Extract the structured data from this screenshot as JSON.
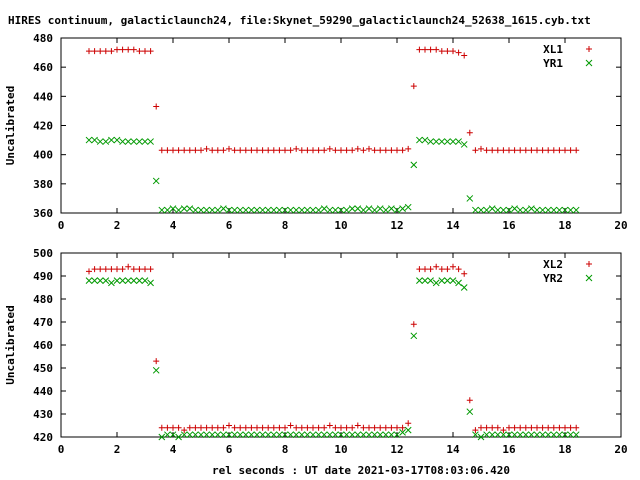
{
  "chart_data": [
    {
      "type": "scatter",
      "title": "HIRES continuum, galacticlaunch24, file:Skynet_59290_galacticlaunch24_52638_1615.cyb.txt",
      "ylabel": "Uncalibrated",
      "xlabel": "",
      "xlim": [
        0,
        20
      ],
      "ylim": [
        360,
        480
      ],
      "xticks": [
        "0",
        "2",
        "4",
        "6",
        "8",
        "10",
        "12",
        "14",
        "16",
        "18",
        "20"
      ],
      "yticks": [
        "360",
        "380",
        "400",
        "420",
        "440",
        "460",
        "480"
      ],
      "grid": false,
      "legend_position": "top-right",
      "series": [
        {
          "name": "XL1",
          "marker": "plus",
          "color": "#cc0000",
          "x": [
            1.0,
            1.2,
            1.4,
            1.6,
            1.8,
            2.0,
            2.2,
            2.4,
            2.6,
            2.8,
            3.0,
            3.2,
            3.4,
            3.6,
            3.8,
            4.0,
            4.2,
            4.4,
            4.6,
            4.8,
            5.0,
            5.2,
            5.4,
            5.6,
            5.8,
            6.0,
            6.2,
            6.4,
            6.6,
            6.8,
            7.0,
            7.2,
            7.4,
            7.6,
            7.8,
            8.0,
            8.2,
            8.4,
            8.6,
            8.8,
            9.0,
            9.2,
            9.4,
            9.6,
            9.8,
            10.0,
            10.2,
            10.4,
            10.6,
            10.8,
            11.0,
            11.2,
            11.4,
            11.6,
            11.8,
            12.0,
            12.2,
            12.4,
            12.6,
            12.8,
            13.0,
            13.2,
            13.4,
            13.6,
            13.8,
            14.0,
            14.2,
            14.4,
            14.6,
            14.8,
            15.0,
            15.2,
            15.4,
            15.6,
            15.8,
            16.0,
            16.2,
            16.4,
            16.6,
            16.8,
            17.0,
            17.2,
            17.4,
            17.6,
            17.8,
            18.0,
            18.2,
            18.4
          ],
          "y": [
            471,
            471,
            471,
            471,
            471,
            472,
            472,
            472,
            472,
            471,
            471,
            471,
            433,
            403,
            403,
            403,
            403,
            403,
            403,
            403,
            403,
            404,
            403,
            403,
            403,
            404,
            403,
            403,
            403,
            403,
            403,
            403,
            403,
            403,
            403,
            403,
            403,
            404,
            403,
            403,
            403,
            403,
            403,
            404,
            403,
            403,
            403,
            403,
            404,
            403,
            404,
            403,
            403,
            403,
            403,
            403,
            403,
            404,
            447,
            472,
            472,
            472,
            472,
            471,
            471,
            471,
            470,
            468,
            415,
            403,
            404,
            403,
            403,
            403,
            403,
            403,
            403,
            403,
            403,
            403,
            403,
            403,
            403,
            403,
            403,
            403,
            403,
            403
          ]
        },
        {
          "name": "YR1",
          "marker": "cross",
          "color": "#009900",
          "x": [
            1.0,
            1.2,
            1.4,
            1.6,
            1.8,
            2.0,
            2.2,
            2.4,
            2.6,
            2.8,
            3.0,
            3.2,
            3.4,
            3.6,
            3.8,
            4.0,
            4.2,
            4.4,
            4.6,
            4.8,
            5.0,
            5.2,
            5.4,
            5.6,
            5.8,
            6.0,
            6.2,
            6.4,
            6.6,
            6.8,
            7.0,
            7.2,
            7.4,
            7.6,
            7.8,
            8.0,
            8.2,
            8.4,
            8.6,
            8.8,
            9.0,
            9.2,
            9.4,
            9.6,
            9.8,
            10.0,
            10.2,
            10.4,
            10.6,
            10.8,
            11.0,
            11.2,
            11.4,
            11.6,
            11.8,
            12.0,
            12.2,
            12.4,
            12.6,
            12.8,
            13.0,
            13.2,
            13.4,
            13.6,
            13.8,
            14.0,
            14.2,
            14.4,
            14.6,
            14.8,
            15.0,
            15.2,
            15.4,
            15.6,
            15.8,
            16.0,
            16.2,
            16.4,
            16.6,
            16.8,
            17.0,
            17.2,
            17.4,
            17.6,
            17.8,
            18.0,
            18.2,
            18.4
          ],
          "y": [
            410,
            410,
            409,
            409,
            410,
            410,
            409,
            409,
            409,
            409,
            409,
            409,
            382,
            362,
            362,
            363,
            362,
            363,
            363,
            362,
            362,
            362,
            362,
            362,
            363,
            362,
            362,
            362,
            362,
            362,
            362,
            362,
            362,
            362,
            362,
            362,
            362,
            362,
            362,
            362,
            362,
            362,
            363,
            362,
            362,
            362,
            362,
            363,
            363,
            362,
            363,
            362,
            363,
            362,
            363,
            362,
            363,
            364,
            393,
            410,
            410,
            409,
            409,
            409,
            409,
            409,
            409,
            407,
            370,
            362,
            362,
            362,
            363,
            362,
            362,
            362,
            363,
            362,
            362,
            363,
            362,
            362,
            362,
            362,
            362,
            362,
            362,
            362
          ]
        }
      ]
    },
    {
      "type": "scatter",
      "title": "",
      "ylabel": "Uncalibrated",
      "xlabel": "rel seconds : UT date 2021-03-17T08:03:06.420",
      "xlim": [
        0,
        20
      ],
      "ylim": [
        420,
        500
      ],
      "xticks": [
        "0",
        "2",
        "4",
        "6",
        "8",
        "10",
        "12",
        "14",
        "16",
        "18",
        "20"
      ],
      "yticks": [
        "420",
        "430",
        "440",
        "450",
        "460",
        "470",
        "480",
        "490",
        "500"
      ],
      "grid": false,
      "legend_position": "top-right",
      "series": [
        {
          "name": "XL2",
          "marker": "plus",
          "color": "#cc0000",
          "x": [
            1.0,
            1.2,
            1.4,
            1.6,
            1.8,
            2.0,
            2.2,
            2.4,
            2.6,
            2.8,
            3.0,
            3.2,
            3.4,
            3.6,
            3.8,
            4.0,
            4.2,
            4.4,
            4.6,
            4.8,
            5.0,
            5.2,
            5.4,
            5.6,
            5.8,
            6.0,
            6.2,
            6.4,
            6.6,
            6.8,
            7.0,
            7.2,
            7.4,
            7.6,
            7.8,
            8.0,
            8.2,
            8.4,
            8.6,
            8.8,
            9.0,
            9.2,
            9.4,
            9.6,
            9.8,
            10.0,
            10.2,
            10.4,
            10.6,
            10.8,
            11.0,
            11.2,
            11.4,
            11.6,
            11.8,
            12.0,
            12.2,
            12.4,
            12.6,
            12.8,
            13.0,
            13.2,
            13.4,
            13.6,
            13.8,
            14.0,
            14.2,
            14.4,
            14.6,
            14.8,
            15.0,
            15.2,
            15.4,
            15.6,
            15.8,
            16.0,
            16.2,
            16.4,
            16.6,
            16.8,
            17.0,
            17.2,
            17.4,
            17.6,
            17.8,
            18.0,
            18.2,
            18.4
          ],
          "y": [
            492,
            493,
            493,
            493,
            493,
            493,
            493,
            494,
            493,
            493,
            493,
            493,
            453,
            424,
            424,
            424,
            424,
            423,
            424,
            424,
            424,
            424,
            424,
            424,
            424,
            425,
            424,
            424,
            424,
            424,
            424,
            424,
            424,
            424,
            424,
            424,
            425,
            424,
            424,
            424,
            424,
            424,
            424,
            425,
            424,
            424,
            424,
            424,
            425,
            424,
            424,
            424,
            424,
            424,
            424,
            424,
            424,
            426,
            469,
            493,
            493,
            493,
            494,
            493,
            493,
            494,
            493,
            491,
            436,
            423,
            424,
            424,
            424,
            424,
            423,
            424,
            424,
            424,
            424,
            424,
            424,
            424,
            424,
            424,
            424,
            424,
            424,
            424
          ]
        },
        {
          "name": "YR2",
          "marker": "cross",
          "color": "#009900",
          "x": [
            1.0,
            1.2,
            1.4,
            1.6,
            1.8,
            2.0,
            2.2,
            2.4,
            2.6,
            2.8,
            3.0,
            3.2,
            3.4,
            3.6,
            3.8,
            4.0,
            4.2,
            4.4,
            4.6,
            4.8,
            5.0,
            5.2,
            5.4,
            5.6,
            5.8,
            6.0,
            6.2,
            6.4,
            6.6,
            6.8,
            7.0,
            7.2,
            7.4,
            7.6,
            7.8,
            8.0,
            8.2,
            8.4,
            8.6,
            8.8,
            9.0,
            9.2,
            9.4,
            9.6,
            9.8,
            10.0,
            10.2,
            10.4,
            10.6,
            10.8,
            11.0,
            11.2,
            11.4,
            11.6,
            11.8,
            12.0,
            12.2,
            12.4,
            12.6,
            12.8,
            13.0,
            13.2,
            13.4,
            13.6,
            13.8,
            14.0,
            14.2,
            14.4,
            14.6,
            14.8,
            15.0,
            15.2,
            15.4,
            15.6,
            15.8,
            16.0,
            16.2,
            16.4,
            16.6,
            16.8,
            17.0,
            17.2,
            17.4,
            17.6,
            17.8,
            18.0,
            18.2,
            18.4
          ],
          "y": [
            488,
            488,
            488,
            488,
            487,
            488,
            488,
            488,
            488,
            488,
            488,
            487,
            449,
            420,
            421,
            421,
            420,
            421,
            421,
            421,
            421,
            421,
            421,
            421,
            421,
            421,
            421,
            421,
            421,
            421,
            421,
            421,
            421,
            421,
            421,
            421,
            421,
            421,
            421,
            421,
            421,
            421,
            421,
            421,
            421,
            421,
            421,
            421,
            421,
            421,
            421,
            421,
            421,
            421,
            421,
            421,
            422,
            423,
            464,
            488,
            488,
            488,
            487,
            488,
            488,
            488,
            487,
            485,
            431,
            421,
            420,
            421,
            421,
            421,
            421,
            421,
            421,
            421,
            421,
            421,
            421,
            421,
            421,
            421,
            421,
            421,
            421,
            421
          ]
        }
      ]
    }
  ]
}
